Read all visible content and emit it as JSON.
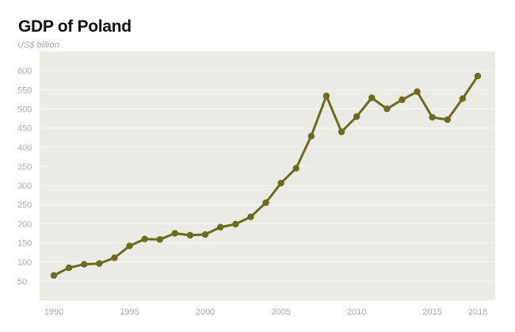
{
  "chart_data": {
    "type": "line",
    "title": "GDP of Poland",
    "ylabel": "US$ billion",
    "xlabel": "",
    "x": [
      1990,
      1991,
      1992,
      1993,
      1994,
      1995,
      1996,
      1997,
      1998,
      1999,
      2000,
      2001,
      2002,
      2003,
      2004,
      2005,
      2006,
      2007,
      2008,
      2009,
      2010,
      2011,
      2012,
      2013,
      2014,
      2015,
      2016,
      2017,
      2018
    ],
    "values": [
      65,
      85,
      94,
      96,
      111,
      142,
      160,
      159,
      175,
      170,
      172,
      191,
      199,
      218,
      255,
      306,
      345,
      429,
      534,
      440,
      480,
      529,
      500,
      524,
      545,
      478,
      472,
      527,
      586
    ],
    "yticks": [
      50,
      100,
      150,
      200,
      250,
      300,
      350,
      400,
      450,
      500,
      550,
      600
    ],
    "xticks": [
      1990,
      1995,
      2000,
      2005,
      2010,
      2015,
      2018
    ],
    "ylim": [
      0,
      650
    ],
    "xlim": [
      1989,
      2019
    ],
    "grid": true,
    "colors": {
      "line": "#6b6b1f",
      "plot_bg": "#eceae5",
      "grid": "#f6f5f2"
    }
  }
}
